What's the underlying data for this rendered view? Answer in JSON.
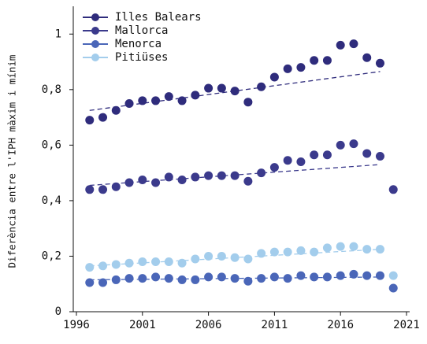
{
  "chart_data": {
    "type": "scatter",
    "y_label": "Diferència entre l'IPH màxim i mínim",
    "x": [
      1997,
      1998,
      1999,
      2000,
      2001,
      2002,
      2003,
      2004,
      2005,
      2006,
      2007,
      2008,
      2009,
      2010,
      2011,
      2012,
      2013,
      2014,
      2015,
      2016,
      2017,
      2018,
      2019,
      2020
    ],
    "trend_x": [
      1997,
      2019
    ],
    "series": [
      {
        "name": "Illes Balears",
        "color": "#2f2c7c",
        "values": [
          0.69,
          0.7,
          0.725,
          0.75,
          0.76,
          0.76,
          0.775,
          0.76,
          0.78,
          0.805,
          0.805,
          0.795,
          0.755,
          0.81,
          0.845,
          0.875,
          0.88,
          0.905,
          0.905,
          0.96,
          0.965,
          0.915,
          0.895,
          null
        ],
        "trend": [
          0.725,
          0.865
        ]
      },
      {
        "name": "Mallorca",
        "color": "#3b3a8c",
        "values": [
          0.44,
          0.44,
          0.45,
          0.465,
          0.475,
          0.465,
          0.485,
          0.475,
          0.485,
          0.49,
          0.49,
          0.49,
          0.47,
          0.5,
          0.52,
          0.545,
          0.54,
          0.565,
          0.565,
          0.6,
          0.605,
          0.57,
          0.56,
          0.44
        ],
        "trend": [
          0.455,
          0.53
        ]
      },
      {
        "name": "Menorca",
        "color": "#4a66b8",
        "values": [
          0.105,
          0.105,
          0.115,
          0.12,
          0.12,
          0.125,
          0.12,
          0.115,
          0.115,
          0.125,
          0.125,
          0.12,
          0.11,
          0.12,
          0.125,
          0.12,
          0.13,
          0.125,
          0.125,
          0.13,
          0.135,
          0.13,
          0.13,
          0.085
        ],
        "trend": [
          0.115,
          0.125
        ]
      },
      {
        "name": "Pitiüses",
        "color": "#a3cdec",
        "values": [
          0.16,
          0.165,
          0.17,
          0.175,
          0.18,
          0.18,
          0.18,
          0.175,
          0.19,
          0.2,
          0.2,
          0.195,
          0.19,
          0.21,
          0.215,
          0.215,
          0.22,
          0.215,
          0.23,
          0.235,
          0.235,
          0.225,
          0.225,
          0.13
        ],
        "trend": [
          0.165,
          0.225
        ]
      }
    ],
    "xlim": [
      1996,
      2021
    ],
    "xticks": [
      1996,
      2001,
      2006,
      2011,
      2016,
      2021
    ],
    "ylim": [
      0,
      1.1
    ],
    "yticks": [
      0,
      {
        "value": 0.2,
        "label": "0,2"
      },
      {
        "value": 0.4,
        "label": "0,4"
      },
      {
        "value": 0.6,
        "label": "0,6"
      },
      {
        "value": 0.8,
        "label": "0,8"
      },
      1
    ],
    "legend": "upper left"
  }
}
